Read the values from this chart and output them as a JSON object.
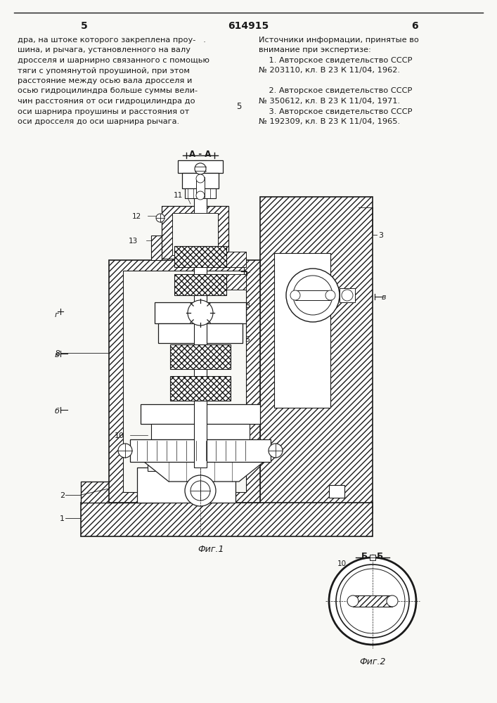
{
  "page_number_left": "5",
  "page_number_center": "614915",
  "page_number_right": "6",
  "left_text_lines": [
    "дра, на штоке которого закреплена проу-   .",
    "шина, и рычага, установленного на валу",
    "дросселя и шарнирно связанного с помощью",
    "тяги с упомянутой проушиной, при этом",
    "расстояние между осью вала дросселя и",
    "осью гидроцилиндра больше суммы вели-",
    "чин расстояния от оси гидроцилиндра до",
    "оси шарнира проушины и расстояния от",
    "оси дросселя до оси шарнира рычага."
  ],
  "right_col_lines": [
    "Источники информации, принятые во",
    "внимание при экспертизе:",
    "    1. Авторское свидетельство СССР",
    "№ 203110, кл. В 23 К 11/04, 1962.",
    "",
    "    2. Авторское свидетельство СССР",
    "№ 350612, кл. В 23 К 11/04, 1971.",
    "    3. Авторское свидетельство СССР",
    "№ 192309, кл. В 23 К 11/04, 1965."
  ],
  "fig1_caption": "Фиг.1",
  "fig2_caption": "Фиг.2",
  "aa_label": "А - А",
  "bb_label": "Б - Б",
  "bg_color": "#f8f8f5",
  "lc": "#1a1a1a",
  "tc": "#1a1a1a"
}
